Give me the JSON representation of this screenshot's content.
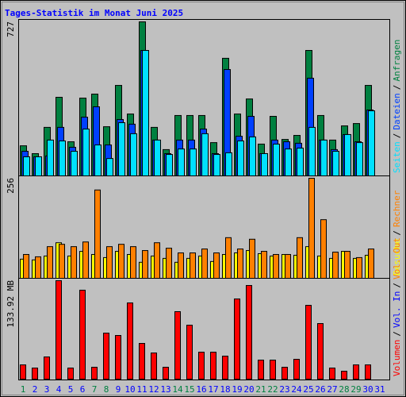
{
  "chart_data": [
    {
      "type": "bar",
      "title": "Tages-Statistik im Monat Juni 2025",
      "ylim": [
        0,
        727
      ],
      "yticks": [
        727
      ],
      "legend_reverse": true,
      "legend_separator": "/",
      "series": [
        {
          "name": "Anfragen",
          "color": "#008040",
          "values": [
            142,
            105,
            229,
            371,
            161,
            367,
            386,
            232,
            427,
            292,
            727,
            229,
            124,
            285,
            285,
            285,
            157,
            555,
            292,
            363,
            150,
            281,
            172,
            191,
            592,
            285,
            169,
            236,
            247,
            427,
            0
          ]
        },
        {
          "name": "Dateien",
          "color": "#0040ff",
          "values": [
            116,
            90,
            94,
            229,
            135,
            277,
            326,
            146,
            266,
            244,
            592,
            169,
            105,
            169,
            169,
            221,
            105,
            502,
            187,
            281,
            105,
            169,
            161,
            154,
            461,
            169,
            124,
            195,
            161,
            311,
            0
          ]
        },
        {
          "name": "Seiten",
          "color": "#00e0ff",
          "values": [
            90,
            90,
            169,
            165,
            116,
            221,
            146,
            82,
            251,
            199,
            592,
            169,
            101,
            127,
            127,
            199,
            101,
            109,
            165,
            184,
            105,
            150,
            127,
            131,
            229,
            169,
            116,
            195,
            157,
            307,
            0
          ]
        }
      ]
    },
    {
      "type": "bar",
      "ylim": [
        0,
        256
      ],
      "yticks": [
        256
      ],
      "legend_separator": "/",
      "series": [
        {
          "name": "Besuche",
          "color": "#ffff00",
          "values": [
            49,
            47,
            57,
            91,
            57,
            69,
            61,
            53,
            69,
            61,
            41,
            57,
            51,
            41,
            51,
            57,
            43,
            61,
            65,
            71,
            63,
            57,
            61,
            59,
            81,
            57,
            51,
            69,
            51,
            59,
            0
          ]
        },
        {
          "name": "Rechner",
          "color": "#ff8000",
          "values": [
            61,
            55,
            81,
            87,
            81,
            93,
            226,
            81,
            87,
            81,
            71,
            91,
            77,
            65,
            65,
            75,
            65,
            104,
            75,
            100,
            69,
            61,
            61,
            104,
            256,
            150,
            67,
            69,
            53,
            75,
            0
          ]
        }
      ]
    },
    {
      "type": "bar",
      "ylim": [
        0,
        133.92
      ],
      "yticks": [
        {
          "value": 133.92,
          "label": "133.92 MB"
        }
      ],
      "legend_separator": "/",
      "categories": [
        "1",
        "2",
        "3",
        "4",
        "5",
        "6",
        "7",
        "8",
        "9",
        "10",
        "11",
        "12",
        "13",
        "14",
        "15",
        "16",
        "17",
        "18",
        "19",
        "20",
        "21",
        "22",
        "23",
        "24",
        "25",
        "26",
        "27",
        "28",
        "29",
        "30",
        "31"
      ],
      "category_colors": [
        "#008040",
        "#0000ff",
        "#0000ff",
        "#0000ff",
        "#0000ff",
        "#0000ff",
        "#008040",
        "#008040",
        "#0000ff",
        "#0000ff",
        "#0000ff",
        "#0000ff",
        "#0000ff",
        "#008040",
        "#008040",
        "#0000ff",
        "#0000ff",
        "#0000ff",
        "#0000ff",
        "#0000ff",
        "#008040",
        "#008040",
        "#0000ff",
        "#0000ff",
        "#0000ff",
        "#0000ff",
        "#0000ff",
        "#008040",
        "#008040",
        "#0000ff",
        "#0000ff"
      ],
      "series": [
        {
          "name": "Volumen",
          "color": "#ff0000",
          "values": [
            19.4,
            15.1,
            30.2,
            133.92,
            15.1,
            121.0,
            16.2,
            62.6,
            59.4,
            103.7,
            48.6,
            35.6,
            16.2,
            91.8,
            73.4,
            36.7,
            36.7,
            31.3,
            109.1,
            127.4,
            25.9,
            25.9,
            16.2,
            27.0,
            100.4,
            75.6,
            15.1,
            10.8,
            19.4,
            19.4,
            0
          ]
        }
      ],
      "legend_extra": [
        {
          "name": "Vol. In",
          "color": "#0000ff"
        },
        {
          "name": "Vol. Out",
          "color": "#ff8000"
        }
      ]
    }
  ]
}
